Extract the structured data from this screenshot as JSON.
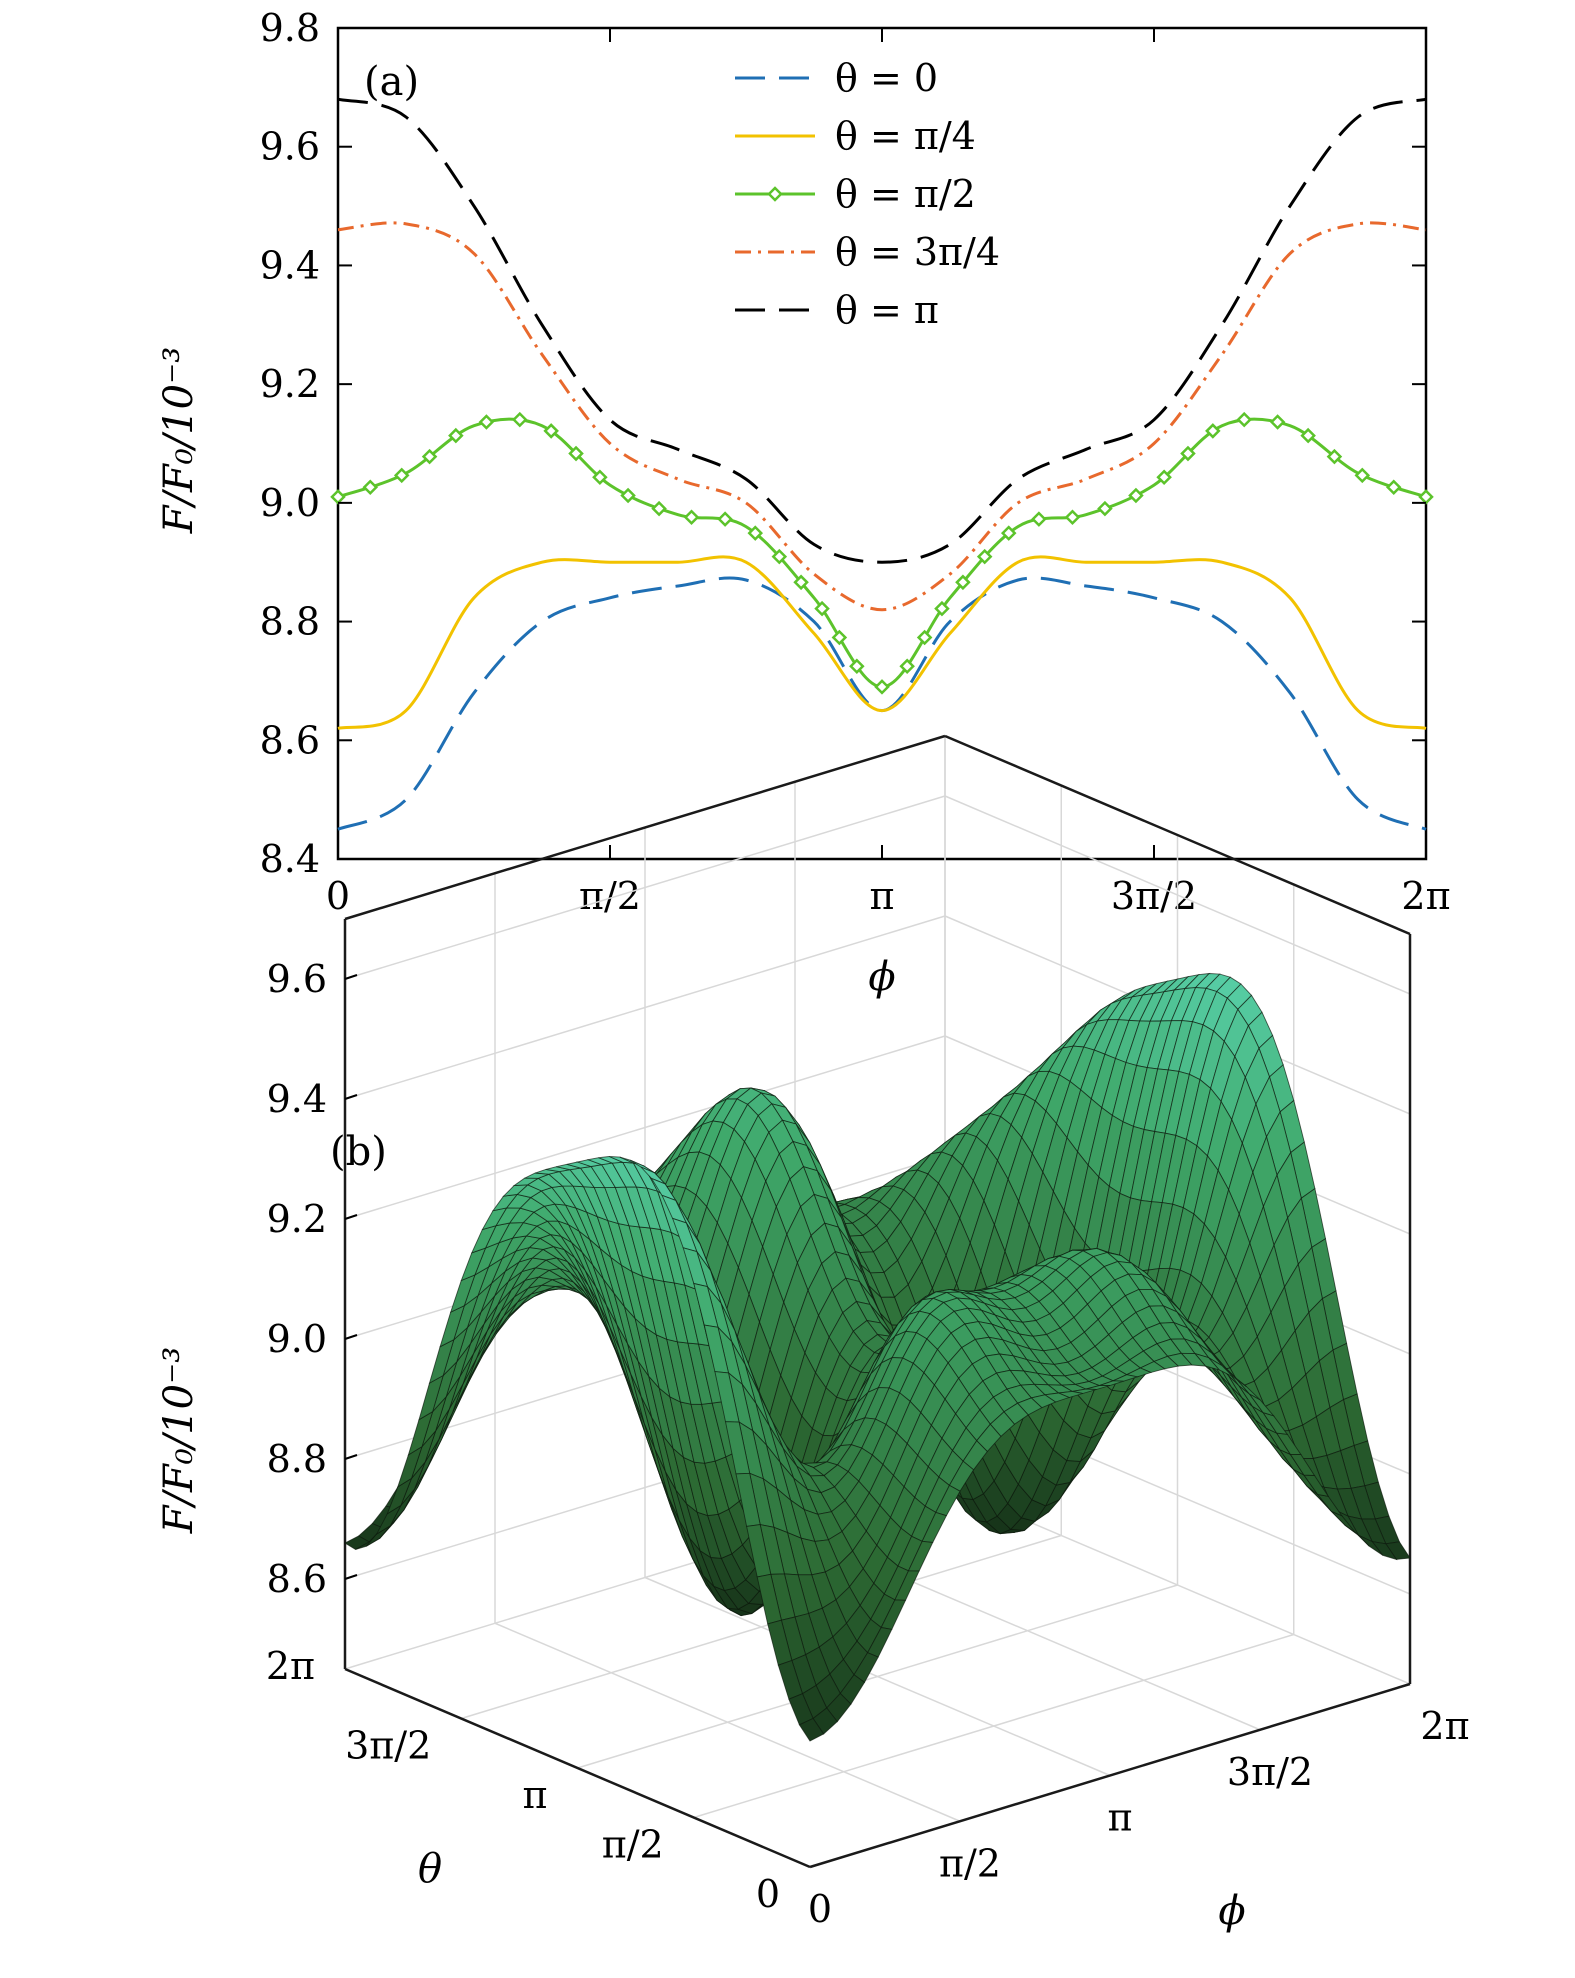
{
  "chart_data": [
    {
      "panel_label": "(a)",
      "type": "line",
      "xlabel": "ϕ",
      "ylabel": "F/F₀/10⁻³",
      "xlim": [
        0,
        6.2832
      ],
      "ylim": [
        8.4,
        9.8
      ],
      "x_ticks": [
        {
          "value": 0,
          "label": "0"
        },
        {
          "value": 1.5708,
          "label": "π/2"
        },
        {
          "value": 3.1416,
          "label": "π"
        },
        {
          "value": 4.7124,
          "label": "3π/2"
        },
        {
          "value": 6.2832,
          "label": "2π"
        }
      ],
      "y_ticks": [
        {
          "value": 8.4,
          "label": "8.4"
        },
        {
          "value": 8.6,
          "label": "8.6"
        },
        {
          "value": 8.8,
          "label": "8.8"
        },
        {
          "value": 9.0,
          "label": "9.0"
        },
        {
          "value": 9.2,
          "label": "9.2"
        },
        {
          "value": 9.4,
          "label": "9.4"
        },
        {
          "value": 9.6,
          "label": "9.6"
        },
        {
          "value": 9.8,
          "label": "9.8"
        }
      ],
      "legend_position": "top-center",
      "grid": false,
      "x": [
        0.0,
        0.3927,
        0.7854,
        1.1781,
        1.5708,
        1.9635,
        2.3562,
        2.7489,
        3.1416,
        3.5343,
        3.927,
        4.3197,
        4.7124,
        5.1051,
        5.4978,
        5.8905,
        6.2832
      ],
      "series": [
        {
          "name": "θ = 0",
          "color": "#1f6fb4",
          "style": "dashed",
          "values": [
            8.45,
            8.5,
            8.68,
            8.8,
            8.84,
            8.86,
            8.87,
            8.8,
            8.65,
            8.8,
            8.87,
            8.86,
            8.84,
            8.8,
            8.68,
            8.5,
            8.45
          ]
        },
        {
          "name": "θ = π/4",
          "color": "#f2c200",
          "style": "solid",
          "values": [
            8.62,
            8.65,
            8.84,
            8.9,
            8.9,
            8.9,
            8.9,
            8.78,
            8.65,
            8.78,
            8.9,
            8.9,
            8.9,
            8.9,
            8.84,
            8.65,
            8.62
          ]
        },
        {
          "name": "θ = π/2",
          "color": "#5cc32b",
          "style": "solid-diamond",
          "values": [
            9.01,
            9.05,
            9.13,
            9.13,
            9.03,
            8.98,
            8.96,
            8.84,
            8.69,
            8.84,
            8.96,
            8.98,
            9.03,
            9.13,
            9.13,
            9.05,
            9.01
          ]
        },
        {
          "name": "θ = 3π/4",
          "color": "#e8692d",
          "style": "dashdot",
          "values": [
            9.46,
            9.47,
            9.42,
            9.25,
            9.1,
            9.04,
            9.0,
            8.88,
            8.82,
            8.88,
            9.0,
            9.04,
            9.1,
            9.25,
            9.42,
            9.47,
            9.46
          ]
        },
        {
          "name": "θ = π",
          "color": "#000000",
          "style": "dashed",
          "values": [
            9.68,
            9.65,
            9.5,
            9.3,
            9.14,
            9.09,
            9.04,
            8.93,
            8.9,
            8.93,
            9.04,
            9.09,
            9.14,
            9.3,
            9.5,
            9.65,
            9.68
          ]
        }
      ]
    },
    {
      "panel_label": "(b)",
      "type": "surface",
      "xlabel": "ϕ",
      "ylabel": "θ",
      "zlabel": "F/F₀/10⁻³",
      "z_ticks": [
        "8.6",
        "8.8",
        "9.0",
        "9.2",
        "9.4",
        "9.6"
      ],
      "phi_ticks": [
        "0",
        "π/2",
        "π",
        "3π/2",
        "2π"
      ],
      "theta_ticks": [
        "0",
        "π/2",
        "π",
        "3π/2",
        "2π"
      ],
      "zlim": [
        8.45,
        9.7
      ],
      "grid": true,
      "colormap": [
        "#0a140a",
        "#2d6b34",
        "#3fa86a",
        "#66e6cc"
      ]
    }
  ]
}
